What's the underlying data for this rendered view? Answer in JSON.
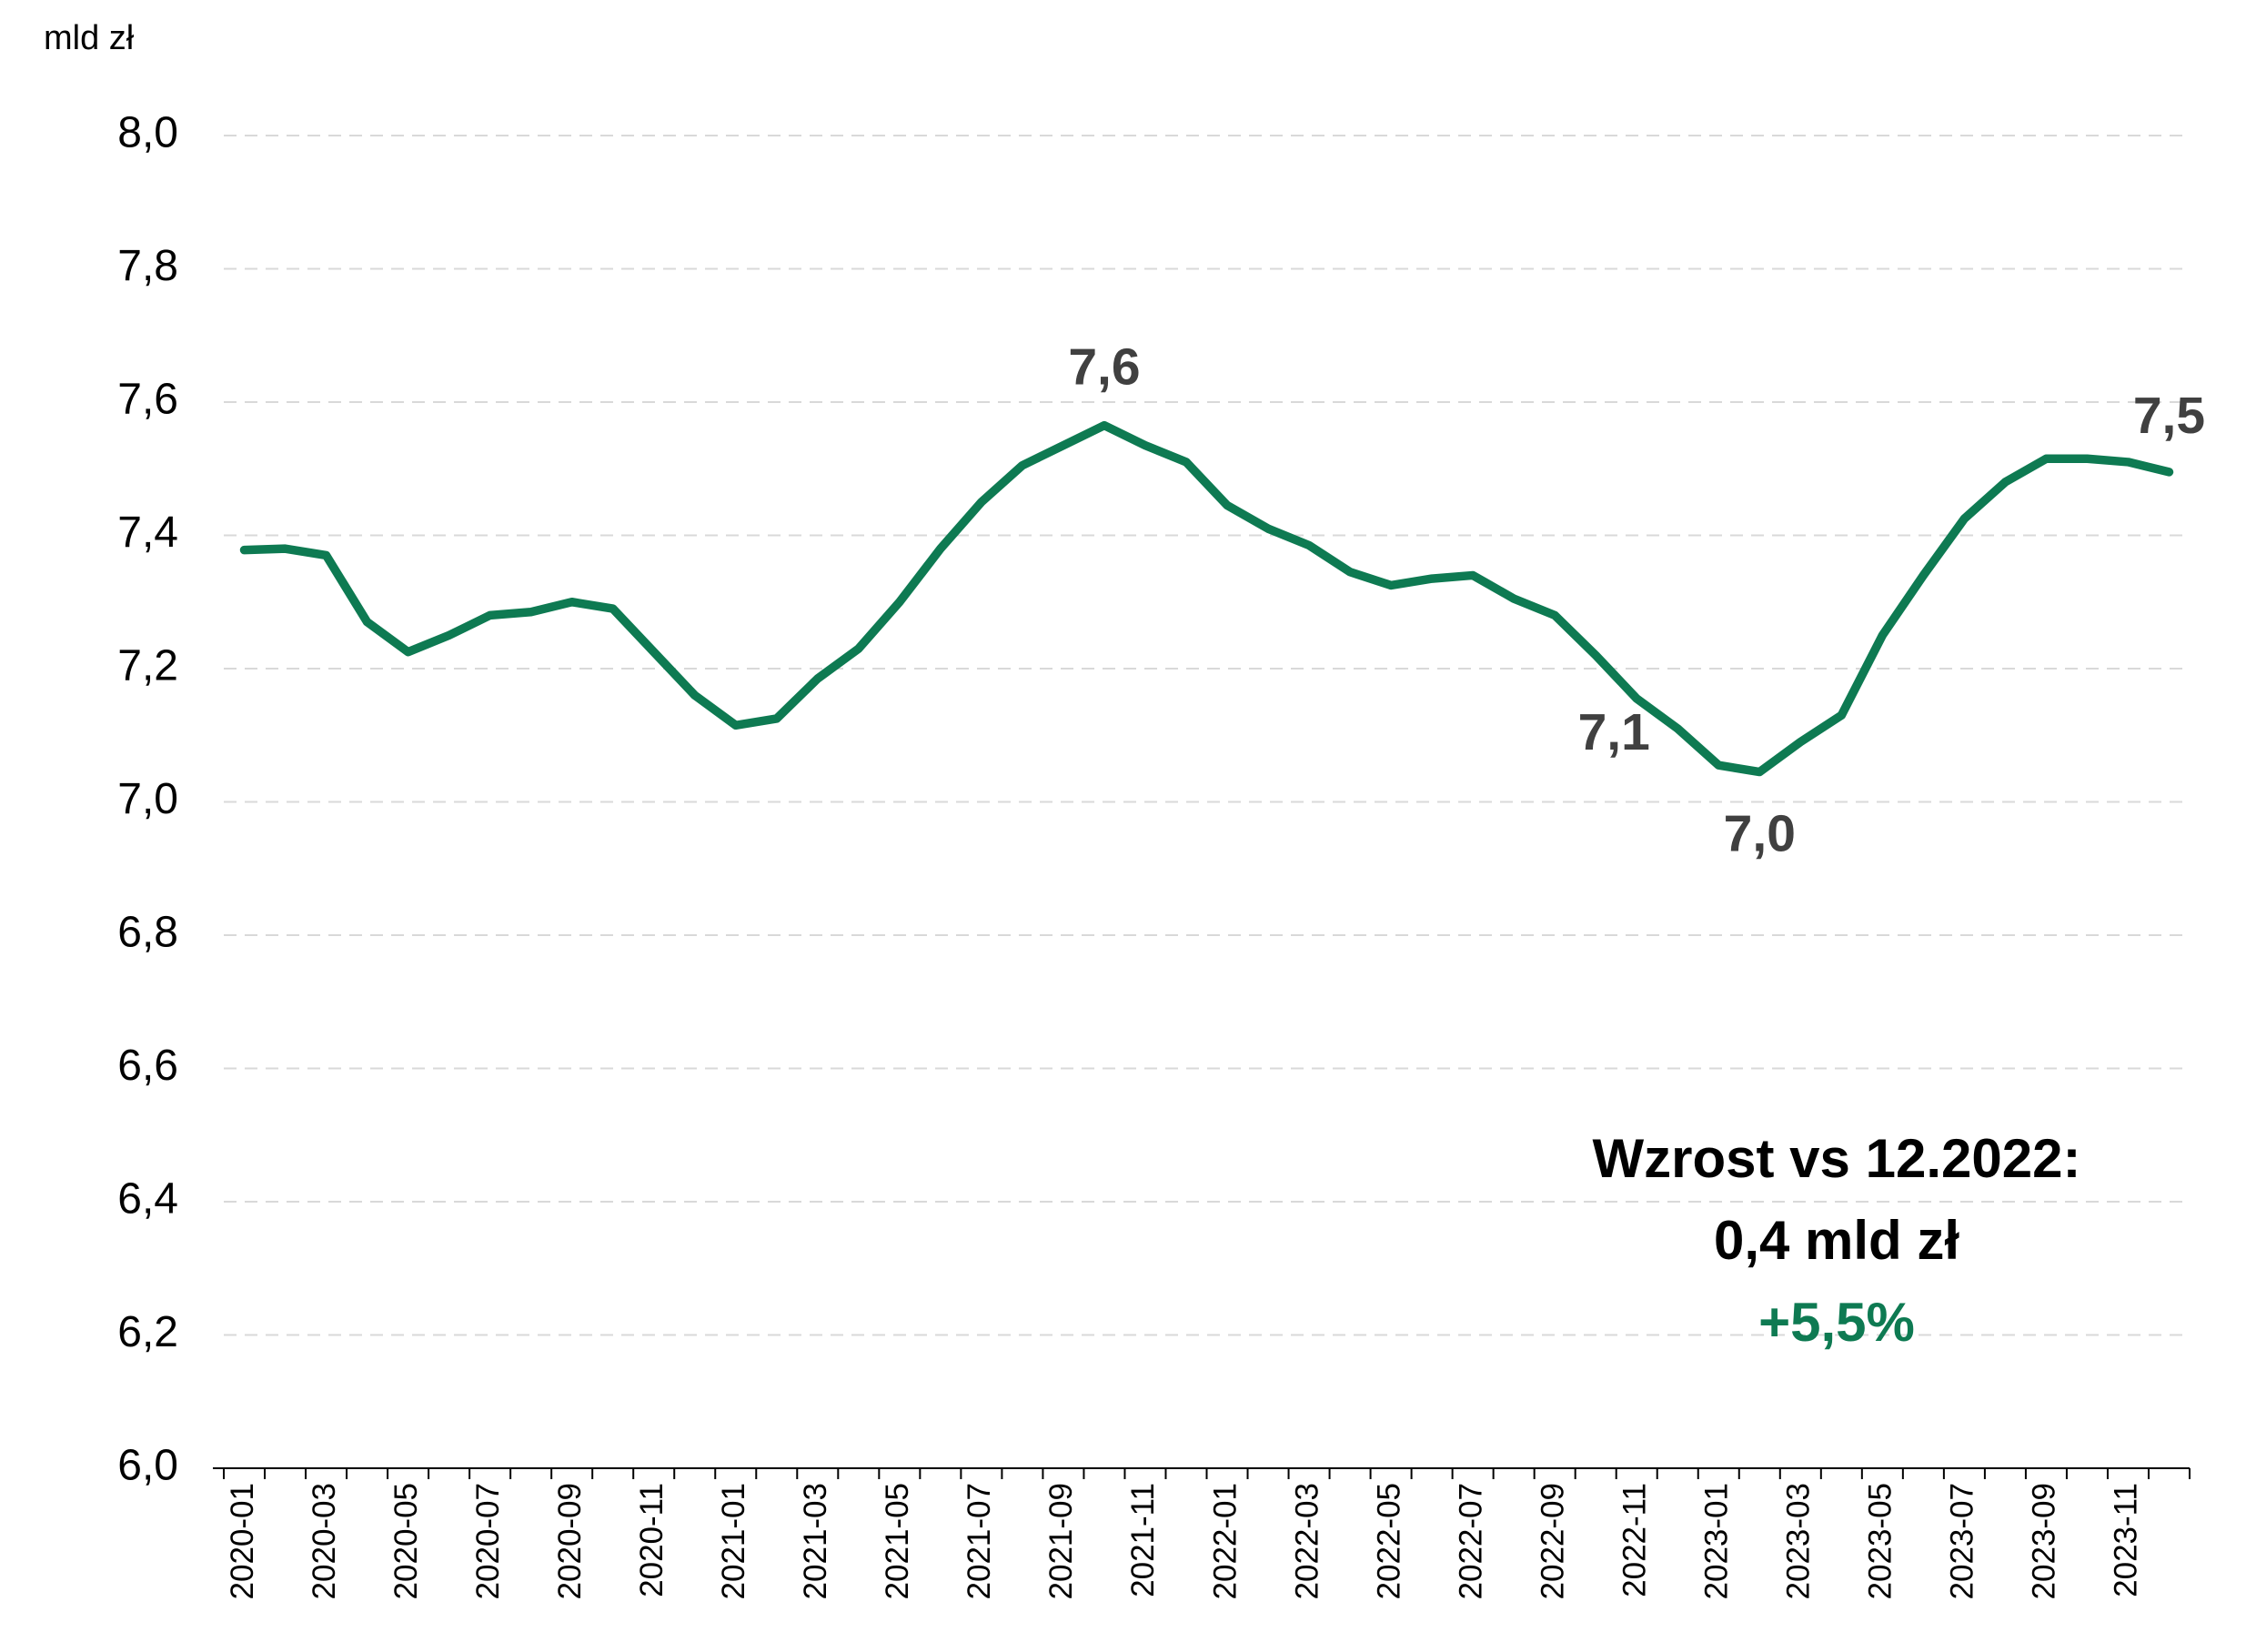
{
  "chart_data": {
    "type": "line",
    "y_axis_label": "mld zł",
    "categories": [
      "2020-01",
      null,
      "2020-03",
      null,
      "2020-05",
      null,
      "2020-07",
      null,
      "2020-09",
      null,
      "2020-11",
      null,
      "2021-01",
      null,
      "2021-03",
      null,
      "2021-05",
      null,
      "2021-07",
      null,
      "2021-09",
      null,
      "2021-11",
      null,
      "2022-01",
      null,
      "2022-03",
      null,
      "2022-05",
      null,
      "2022-07",
      null,
      "2022-09",
      null,
      "2022-11",
      null,
      "2023-01",
      null,
      "2023-03",
      null,
      "2023-05",
      null,
      "2023-07",
      null,
      "2023-09",
      null,
      "2023-11",
      null
    ],
    "series": [
      {
        "name": "mld zł",
        "color": "#0e7a52",
        "values": [
          7.378,
          7.38,
          7.37,
          7.27,
          7.225,
          7.25,
          7.28,
          7.285,
          7.3,
          7.29,
          7.225,
          7.16,
          7.115,
          7.125,
          7.185,
          7.23,
          7.3,
          7.38,
          7.45,
          7.505,
          7.535,
          7.565,
          7.535,
          7.51,
          7.445,
          7.41,
          7.385,
          7.345,
          7.325,
          7.335,
          7.34,
          7.305,
          7.28,
          7.22,
          7.155,
          7.11,
          7.055,
          7.045,
          7.09,
          7.13,
          7.25,
          7.34,
          7.425,
          7.48,
          7.515,
          7.515,
          7.51,
          7.495
        ],
        "value_labels": [
          null,
          null,
          null,
          null,
          null,
          null,
          null,
          null,
          null,
          null,
          null,
          null,
          null,
          null,
          null,
          null,
          null,
          null,
          null,
          null,
          null,
          "7,6",
          null,
          null,
          null,
          null,
          null,
          null,
          null,
          null,
          null,
          null,
          null,
          null,
          null,
          "7,1",
          null,
          "7,0",
          null,
          null,
          null,
          null,
          null,
          null,
          null,
          null,
          null,
          "7,5"
        ]
      }
    ],
    "ylim": [
      6.0,
      8.0
    ],
    "yticks": [
      {
        "value": 6.0,
        "label": "6,0"
      },
      {
        "value": 6.2,
        "label": "6,2"
      },
      {
        "value": 6.4,
        "label": "6,4"
      },
      {
        "value": 6.6,
        "label": "6,6"
      },
      {
        "value": 6.8,
        "label": "6,8"
      },
      {
        "value": 7.0,
        "label": "7,0"
      },
      {
        "value": 7.2,
        "label": "7,2"
      },
      {
        "value": 7.4,
        "label": "7,4"
      },
      {
        "value": 7.6,
        "label": "7,6"
      },
      {
        "value": 7.8,
        "label": "7,8"
      },
      {
        "value": 8.0,
        "label": "8,0"
      }
    ],
    "grid": true,
    "annotations": [
      {
        "text": "Wzrost vs 12.2022:",
        "color": "#000000"
      },
      {
        "text": "0,4 mld zł",
        "color": "#000000"
      },
      {
        "text": "+5,5%",
        "color": "#0e7a52"
      }
    ]
  }
}
